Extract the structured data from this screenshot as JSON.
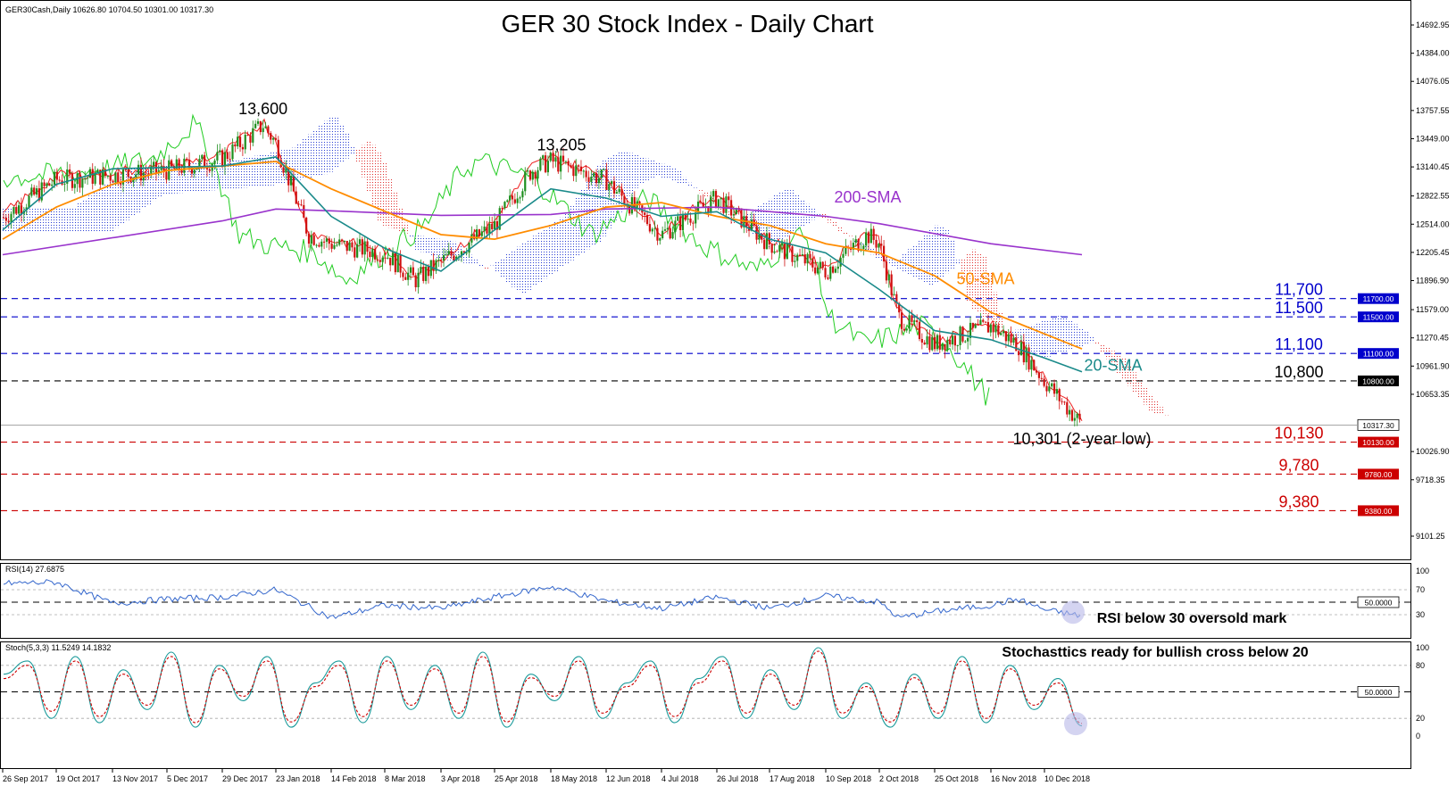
{
  "header": {
    "symbol_info": "GER30Cash,Daily  10626.80 10704.50 10301.00 10317.30",
    "title": "GER 30 Stock Index - Daily Chart"
  },
  "chart_data": [
    {
      "type": "candlestick",
      "panel": "price",
      "title": "GER 30 Stock Index - Daily Chart",
      "symbol": "GER30Cash,Daily",
      "last_bar": {
        "open": 10626.8,
        "high": 10704.5,
        "low": 10301.0,
        "close": 10317.3
      },
      "ylim": [
        9010,
        14850
      ],
      "y_ticks": [
        14692.95,
        14384.0,
        14076.05,
        13757.55,
        13449.0,
        13140.45,
        12822.55,
        12514.0,
        12205.45,
        11896.9,
        11579.0,
        11270.45,
        10961.9,
        10653.35,
        10026.9,
        9718.35,
        9101.25
      ],
      "y_tick_labels": [
        "14692.95",
        "14384.00",
        "14076.05",
        "13757.55",
        "13449.00",
        "13140.45",
        "12822.55",
        "12514.00",
        "12205.45",
        "11896.90",
        "11579.00",
        "11270.45",
        "10961.90",
        "10653.35",
        "10026.90",
        "9718.35",
        "9101.25"
      ],
      "x_tick_labels": [
        "26 Sep 2017",
        "19 Oct 2017",
        "13 Nov 2017",
        "5 Dec 2017",
        "29 Dec 2017",
        "23 Jan 2018",
        "14 Feb 2018",
        "8 Mar 2018",
        "3 Apr 2018",
        "25 Apr 2018",
        "18 May 2018",
        "12 Jun 2018",
        "4 Jul 2018",
        "26 Jul 2018",
        "17 Aug 2018",
        "10 Sep 2018",
        "2 Oct 2018",
        "25 Oct 2018",
        "16 Nov 2018",
        "10 Dec 2018"
      ],
      "close_path": [
        [
          "26 Sep 2017",
          12580
        ],
        [
          "19 Oct 2017",
          13000
        ],
        [
          "13 Nov 2017",
          13050
        ],
        [
          "5 Dec 2017",
          13100
        ],
        [
          "29 Dec 2017",
          13230
        ],
        [
          "17 Jan 2018",
          13600
        ],
        [
          "23 Jan 2018",
          13400
        ],
        [
          "5 Feb 2018",
          12400
        ],
        [
          "14 Feb 2018",
          12300
        ],
        [
          "8 Mar 2018",
          12200
        ],
        [
          "22 Mar 2018",
          11900
        ],
        [
          "3 Apr 2018",
          12100
        ],
        [
          "25 Apr 2018",
          12500
        ],
        [
          "10 May 2018",
          13100
        ],
        [
          "18 May 2018",
          13205
        ],
        [
          "12 Jun 2018",
          13000
        ],
        [
          "15 Jun 2018",
          12900
        ],
        [
          "4 Jul 2018",
          12400
        ],
        [
          "26 Jul 2018",
          12800
        ],
        [
          "17 Aug 2018",
          12300
        ],
        [
          "10 Sep 2018",
          12000
        ],
        [
          "27 Sep 2018",
          12400
        ],
        [
          "2 Oct 2018",
          12300
        ],
        [
          "10 Oct 2018",
          11500
        ],
        [
          "25 Oct 2018",
          11200
        ],
        [
          "16 Nov 2018",
          11400
        ],
        [
          "28 Nov 2018",
          11200
        ],
        [
          "10 Dec 2018",
          10800
        ],
        [
          "20 Dec 2018",
          10317
        ]
      ],
      "indicators": {
        "sma200": {
          "label": "200-SMA",
          "color": "#9933cc",
          "path": [
            [
              "26 Sep 2017",
              12180
            ],
            [
              "29 Dec 2017",
              12550
            ],
            [
              "23 Jan 2018",
              12680
            ],
            [
              "14 Feb 2018",
              12660
            ],
            [
              "3 Apr 2018",
              12610
            ],
            [
              "18 May 2018",
              12620
            ],
            [
              "12 Jun 2018",
              12680
            ],
            [
              "26 Jul 2018",
              12700
            ],
            [
              "10 Sep 2018",
              12600
            ],
            [
              "2 Oct 2018",
              12520
            ],
            [
              "16 Nov 2018",
              12300
            ],
            [
              "20 Dec 2018",
              12180
            ]
          ]
        },
        "sma50": {
          "label": "50-SMA",
          "color": "#ff8c00",
          "path": [
            [
              "26 Sep 2017",
              12350
            ],
            [
              "19 Oct 2017",
              12700
            ],
            [
              "13 Nov 2017",
              12950
            ],
            [
              "5 Dec 2017",
              13100
            ],
            [
              "29 Dec 2017",
              13150
            ],
            [
              "23 Jan 2018",
              13200
            ],
            [
              "14 Feb 2018",
              12900
            ],
            [
              "3 Apr 2018",
              12400
            ],
            [
              "25 Apr 2018",
              12350
            ],
            [
              "18 May 2018",
              12500
            ],
            [
              "12 Jun 2018",
              12700
            ],
            [
              "4 Jul 2018",
              12750
            ],
            [
              "26 Jul 2018",
              12600
            ],
            [
              "17 Aug 2018",
              12500
            ],
            [
              "10 Sep 2018",
              12300
            ],
            [
              "2 Oct 2018",
              12200
            ],
            [
              "25 Oct 2018",
              11950
            ],
            [
              "16 Nov 2018",
              11550
            ],
            [
              "20 Dec 2018",
              11150
            ]
          ]
        },
        "sma20": {
          "label": "20-SMA",
          "color": "#1a8a8a",
          "path": [
            [
              "26 Sep 2017",
              12450
            ],
            [
              "19 Oct 2017",
              12950
            ],
            [
              "13 Nov 2017",
              13120
            ],
            [
              "29 Dec 2017",
              13150
            ],
            [
              "23 Jan 2018",
              13250
            ],
            [
              "14 Feb 2018",
              12600
            ],
            [
              "8 Mar 2018",
              12250
            ],
            [
              "3 Apr 2018",
              12000
            ],
            [
              "25 Apr 2018",
              12450
            ],
            [
              "18 May 2018",
              12900
            ],
            [
              "12 Jun 2018",
              12800
            ],
            [
              "4 Jul 2018",
              12600
            ],
            [
              "26 Jul 2018",
              12650
            ],
            [
              "17 Aug 2018",
              12350
            ],
            [
              "10 Sep 2018",
              12200
            ],
            [
              "2 Oct 2018",
              11800
            ],
            [
              "25 Oct 2018",
              11350
            ],
            [
              "16 Nov 2018",
              11250
            ],
            [
              "10 Dec 2018",
              11050
            ],
            [
              "20 Dec 2018",
              10900
            ]
          ]
        }
      },
      "levels": [
        {
          "value": 11700,
          "label": "11,700",
          "tag": "11700.00",
          "color": "#0000cc"
        },
        {
          "value": 11500,
          "label": "11,500",
          "tag": "11500.00",
          "color": "#0000cc"
        },
        {
          "value": 11100,
          "label": "11,100",
          "tag": "11100.00",
          "color": "#0000cc"
        },
        {
          "value": 10800,
          "label": "10,800",
          "tag": "10800.00",
          "color": "#000000"
        },
        {
          "value": 10130,
          "label": "10,130",
          "tag": "10130.00",
          "color": "#cc0000"
        },
        {
          "value": 9780,
          "label": "9,780",
          "tag": "9780.00",
          "color": "#cc0000"
        },
        {
          "value": 9380,
          "label": "9,380",
          "tag": "9380.00",
          "color": "#cc0000"
        }
      ],
      "last_price_tag": "10317.30",
      "annotations": [
        {
          "text": "13,600",
          "date": "17 Jan 2018",
          "value": 13600
        },
        {
          "text": "13,205",
          "date": "18 May 2018",
          "value": 13205
        },
        {
          "text": "10,301 (2-year low)",
          "date": "20 Dec 2018",
          "value": 10301
        }
      ]
    },
    {
      "type": "line",
      "panel": "rsi",
      "title": "RSI(14) 27.6875",
      "ylim": [
        0,
        100
      ],
      "y_ticks": [
        100,
        70,
        30,
        0
      ],
      "y_tick_labels": [
        "100",
        "70",
        "30",
        "0"
      ],
      "mid_tag": "50.0000",
      "color": "#3366cc",
      "path": [
        [
          "26 Sep 2017",
          80
        ],
        [
          "19 Oct 2017",
          82
        ],
        [
          "13 Nov 2017",
          48
        ],
        [
          "5 Dec 2017",
          55
        ],
        [
          "29 Dec 2017",
          58
        ],
        [
          "23 Jan 2018",
          70
        ],
        [
          "14 Feb 2018",
          25
        ],
        [
          "8 Mar 2018",
          45
        ],
        [
          "3 Apr 2018",
          40
        ],
        [
          "25 Apr 2018",
          58
        ],
        [
          "18 May 2018",
          75
        ],
        [
          "12 Jun 2018",
          52
        ],
        [
          "4 Jul 2018",
          40
        ],
        [
          "26 Jul 2018",
          58
        ],
        [
          "17 Aug 2018",
          40
        ],
        [
          "10 Sep 2018",
          60
        ],
        [
          "2 Oct 2018",
          50
        ],
        [
          "10 Oct 2018",
          25
        ],
        [
          "25 Oct 2018",
          35
        ],
        [
          "16 Nov 2018",
          45
        ],
        [
          "28 Nov 2018",
          55
        ],
        [
          "10 Dec 2018",
          38
        ],
        [
          "20 Dec 2018",
          27.7
        ]
      ],
      "annotation": "RSI below 30 oversold mark"
    },
    {
      "type": "line",
      "panel": "stochastic",
      "title": "Stoch(5,3,3) 11.5249 14.1832",
      "ylim": [
        0,
        100
      ],
      "y_ticks": [
        100,
        80,
        20,
        0
      ],
      "y_tick_labels": [
        "100",
        "80",
        "20",
        "0"
      ],
      "mid_tag": "50.0000",
      "series": [
        {
          "color": "#1a9a9a",
          "values": [
            70,
            85,
            20,
            90,
            15,
            75,
            30,
            95,
            10,
            80,
            40,
            90,
            10,
            60,
            85,
            15,
            90,
            30,
            80,
            20,
            95,
            10,
            70,
            40,
            90,
            20,
            60,
            85,
            15,
            65,
            90,
            20,
            75,
            30,
            100,
            20,
            60,
            10,
            70,
            20,
            90,
            15,
            80,
            30,
            65,
            11.5
          ]
        },
        {
          "color": "#cc0000",
          "values": [
            65,
            80,
            28,
            85,
            22,
            70,
            35,
            90,
            15,
            76,
            45,
            85,
            16,
            56,
            80,
            22,
            85,
            35,
            76,
            26,
            90,
            16,
            66,
            45,
            85,
            26,
            56,
            80,
            22,
            60,
            85,
            26,
            70,
            35,
            96,
            26,
            56,
            16,
            66,
            26,
            85,
            20,
            76,
            35,
            60,
            14.2
          ]
        }
      ],
      "annotation": "Stochasttics ready for bullish cross below 20"
    }
  ]
}
